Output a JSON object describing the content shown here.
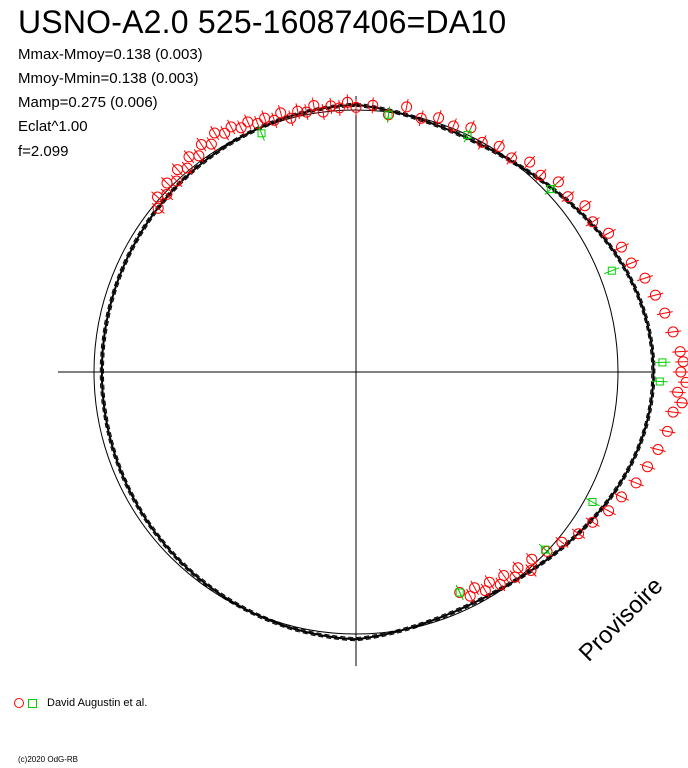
{
  "title": "USNO-A2.0 525-16087406=DA10",
  "stats": [
    "Mmax-Mmoy=0.138 (0.003)",
    "Mmoy-Mmin=0.138 (0.003)",
    "Mamp=0.275 (0.006)",
    "Eclat^1.00",
    "f=2.099"
  ],
  "watermark": "Provisoire",
  "legend_label": "David Augustin et al.",
  "credit": "(c)2020 OdG-RB",
  "colors": {
    "observer_circle": "#ff0000",
    "observer_square": "#00d000",
    "curve": "#000000"
  },
  "chart_data": {
    "type": "polar-phase-diagram",
    "description_of_encoding": "polar magnitude plot: angle = phase (0 at top, clockwise), radius = brightness",
    "mmax_minus_mmoy": 0.138,
    "mmoy_minus_mmin": 0.138,
    "amplitude": 0.275,
    "frequency": 2.099,
    "series": [
      {
        "name": "David Augustin et al.",
        "marker": "circle",
        "points": [
          [
            0.0,
            1.01
          ],
          [
            0.01,
            1.02
          ],
          [
            0.02,
            0.99
          ],
          [
            0.03,
            1.03
          ],
          [
            0.04,
            1.0
          ],
          [
            0.05,
            1.02
          ],
          [
            0.06,
            1.01
          ],
          [
            0.07,
            1.03
          ],
          [
            0.08,
            1.0
          ],
          [
            0.09,
            1.02
          ],
          [
            0.1,
            1.01
          ],
          [
            0.11,
            1.04
          ],
          [
            0.12,
            1.03
          ],
          [
            0.13,
            1.06
          ],
          [
            0.14,
            1.05
          ],
          [
            0.15,
            1.08
          ],
          [
            0.16,
            1.07
          ],
          [
            0.17,
            1.1
          ],
          [
            0.18,
            1.12
          ],
          [
            0.19,
            1.13
          ],
          [
            0.2,
            1.16
          ],
          [
            0.21,
            1.18
          ],
          [
            0.22,
            1.2
          ],
          [
            0.23,
            1.22
          ],
          [
            0.24,
            1.24
          ],
          [
            0.245,
            1.25
          ],
          [
            0.25,
            1.24
          ],
          [
            0.255,
            1.26
          ],
          [
            0.26,
            1.23
          ],
          [
            0.265,
            1.25
          ],
          [
            0.27,
            1.22
          ],
          [
            0.28,
            1.21
          ],
          [
            0.29,
            1.19
          ],
          [
            0.3,
            1.17
          ],
          [
            0.31,
            1.15
          ],
          [
            0.32,
            1.12
          ],
          [
            0.33,
            1.1
          ],
          [
            0.34,
            1.07
          ],
          [
            0.35,
            1.05
          ],
          [
            0.36,
            1.02
          ],
          [
            0.37,
            1.0
          ],
          [
            0.38,
            0.98
          ],
          [
            0.385,
            1.01
          ],
          [
            0.39,
            0.97
          ],
          [
            0.395,
            0.99
          ],
          [
            0.4,
            0.96
          ],
          [
            0.405,
            0.98
          ],
          [
            0.41,
            0.95
          ],
          [
            0.415,
            0.97
          ],
          [
            0.42,
            0.94
          ],
          [
            0.425,
            0.96
          ],
          [
            0.43,
            0.93
          ],
          [
            0.86,
            0.98
          ],
          [
            0.865,
            1.01
          ],
          [
            0.87,
            0.99
          ],
          [
            0.875,
            1.02
          ],
          [
            0.88,
            1.0
          ],
          [
            0.885,
            1.03
          ],
          [
            0.89,
            1.01
          ],
          [
            0.895,
            1.04
          ],
          [
            0.9,
            1.02
          ],
          [
            0.905,
            1.05
          ],
          [
            0.91,
            1.03
          ],
          [
            0.915,
            1.06
          ],
          [
            0.92,
            1.04
          ],
          [
            0.925,
            1.05
          ],
          [
            0.93,
            1.03
          ],
          [
            0.935,
            1.04
          ],
          [
            0.94,
            1.02
          ],
          [
            0.945,
            1.03
          ],
          [
            0.95,
            1.01
          ],
          [
            0.955,
            1.03
          ],
          [
            0.96,
            1.0
          ],
          [
            0.965,
            1.02
          ],
          [
            0.97,
            1.01
          ],
          [
            0.975,
            1.03
          ],
          [
            0.98,
            1.0
          ],
          [
            0.985,
            1.02
          ],
          [
            0.99,
            1.01
          ],
          [
            0.995,
            1.03
          ]
        ]
      },
      {
        "name": "",
        "marker": "square",
        "points": [
          [
            0.02,
            0.99
          ],
          [
            0.07,
            1.0
          ],
          [
            0.13,
            1.02
          ],
          [
            0.19,
            1.05
          ],
          [
            0.245,
            1.17
          ],
          [
            0.255,
            1.16
          ],
          [
            0.33,
            1.03
          ],
          [
            0.37,
            0.99
          ],
          [
            0.43,
            0.93
          ],
          [
            0.94,
            0.98
          ]
        ]
      }
    ],
    "reference_circle_radius": 1.0
  }
}
